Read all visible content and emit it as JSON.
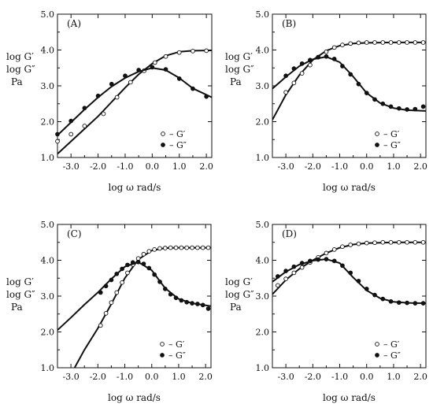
{
  "chart_data": [
    {
      "type": "scatter",
      "panel_label": "(A)",
      "xlabel": "log ω  rad/s",
      "ylabel_lines": [
        "log G′",
        "log G″",
        "Pa"
      ],
      "xlim": [
        -3.5,
        2.2
      ],
      "ylim": [
        1.0,
        5.0
      ],
      "x_ticks": [
        -3.0,
        -2.0,
        -1.0,
        0.0,
        1.0,
        2.0
      ],
      "y_ticks": [
        1.0,
        2.0,
        3.0,
        4.0,
        5.0
      ],
      "legend_position": "bottom-right",
      "series": [
        {
          "name": "G′",
          "marker": "open-circle",
          "points": [
            [
              -3.5,
              1.45
            ],
            [
              -3.0,
              1.65
            ],
            [
              -2.5,
              1.88
            ],
            [
              -1.8,
              2.22
            ],
            [
              -1.3,
              2.68
            ],
            [
              -0.8,
              3.1
            ],
            [
              -0.3,
              3.42
            ],
            [
              0.1,
              3.65
            ],
            [
              0.5,
              3.82
            ],
            [
              1.0,
              3.93
            ],
            [
              1.5,
              3.97
            ],
            [
              2.0,
              3.98
            ]
          ],
          "fit": [
            [
              -3.5,
              1.1
            ],
            [
              -3.0,
              1.45
            ],
            [
              -2.5,
              1.8
            ],
            [
              -2.0,
              2.15
            ],
            [
              -1.5,
              2.55
            ],
            [
              -1.0,
              2.95
            ],
            [
              -0.5,
              3.32
            ],
            [
              0.0,
              3.62
            ],
            [
              0.5,
              3.84
            ],
            [
              1.0,
              3.95
            ],
            [
              1.5,
              3.98
            ],
            [
              2.2,
              3.99
            ]
          ]
        },
        {
          "name": "G″",
          "marker": "filled-circle",
          "points": [
            [
              -3.5,
              1.65
            ],
            [
              -3.0,
              2.02
            ],
            [
              -2.5,
              2.38
            ],
            [
              -2.0,
              2.72
            ],
            [
              -1.5,
              3.05
            ],
            [
              -1.0,
              3.28
            ],
            [
              -0.5,
              3.44
            ],
            [
              0.0,
              3.52
            ],
            [
              0.5,
              3.46
            ],
            [
              1.0,
              3.2
            ],
            [
              1.5,
              2.92
            ],
            [
              2.0,
              2.7
            ]
          ],
          "fit": [
            [
              -3.5,
              1.62
            ],
            [
              -3.0,
              1.98
            ],
            [
              -2.5,
              2.34
            ],
            [
              -2.0,
              2.68
            ],
            [
              -1.5,
              2.98
            ],
            [
              -1.0,
              3.22
            ],
            [
              -0.5,
              3.4
            ],
            [
              0.0,
              3.5
            ],
            [
              0.5,
              3.44
            ],
            [
              1.0,
              3.22
            ],
            [
              1.5,
              2.93
            ],
            [
              2.2,
              2.68
            ]
          ]
        }
      ]
    },
    {
      "type": "scatter",
      "panel_label": "(B)",
      "xlabel": "log ω  rad/s",
      "ylabel_lines": [
        "log G′",
        "log G″",
        "Pa"
      ],
      "xlim": [
        -3.5,
        2.2
      ],
      "ylim": [
        1.0,
        5.0
      ],
      "x_ticks": [
        -3.0,
        -2.0,
        -1.0,
        0.0,
        1.0,
        2.0
      ],
      "y_ticks": [
        1.0,
        2.0,
        3.0,
        4.0,
        5.0
      ],
      "legend_position": "bottom-right",
      "series": [
        {
          "name": "G′",
          "marker": "open-circle",
          "points": [
            [
              -3.0,
              2.82
            ],
            [
              -2.7,
              3.08
            ],
            [
              -2.4,
              3.35
            ],
            [
              -2.1,
              3.58
            ],
            [
              -1.8,
              3.8
            ],
            [
              -1.5,
              3.95
            ],
            [
              -1.2,
              4.07
            ],
            [
              -0.9,
              4.14
            ],
            [
              -0.6,
              4.18
            ],
            [
              -0.3,
              4.2
            ],
            [
              0.0,
              4.21
            ],
            [
              0.3,
              4.21
            ],
            [
              0.6,
              4.21
            ],
            [
              0.9,
              4.21
            ],
            [
              1.2,
              4.21
            ],
            [
              1.5,
              4.21
            ],
            [
              1.8,
              4.21
            ],
            [
              2.1,
              4.21
            ]
          ],
          "fit": [
            [
              -3.5,
              2.05
            ],
            [
              -3.0,
              2.75
            ],
            [
              -2.5,
              3.3
            ],
            [
              -2.0,
              3.72
            ],
            [
              -1.5,
              3.98
            ],
            [
              -1.0,
              4.12
            ],
            [
              -0.5,
              4.18
            ],
            [
              0.0,
              4.2
            ],
            [
              1.0,
              4.21
            ],
            [
              2.2,
              4.21
            ]
          ]
        },
        {
          "name": "G″",
          "marker": "filled-circle",
          "points": [
            [
              -3.0,
              3.28
            ],
            [
              -2.7,
              3.48
            ],
            [
              -2.4,
              3.62
            ],
            [
              -2.1,
              3.72
            ],
            [
              -1.8,
              3.8
            ],
            [
              -1.5,
              3.82
            ],
            [
              -1.2,
              3.75
            ],
            [
              -0.9,
              3.55
            ],
            [
              -0.6,
              3.32
            ],
            [
              -0.3,
              3.05
            ],
            [
              0.0,
              2.8
            ],
            [
              0.3,
              2.62
            ],
            [
              0.6,
              2.5
            ],
            [
              0.9,
              2.42
            ],
            [
              1.2,
              2.37
            ],
            [
              1.5,
              2.34
            ],
            [
              1.8,
              2.35
            ],
            [
              2.1,
              2.42
            ]
          ],
          "fit": [
            [
              -3.5,
              2.92
            ],
            [
              -3.0,
              3.25
            ],
            [
              -2.5,
              3.55
            ],
            [
              -2.0,
              3.74
            ],
            [
              -1.5,
              3.81
            ],
            [
              -1.0,
              3.66
            ],
            [
              -0.5,
              3.26
            ],
            [
              0.0,
              2.8
            ],
            [
              0.5,
              2.52
            ],
            [
              1.0,
              2.38
            ],
            [
              1.5,
              2.32
            ],
            [
              2.2,
              2.3
            ]
          ]
        }
      ]
    },
    {
      "type": "scatter",
      "panel_label": "(C)",
      "xlabel": "log ω  rad/s",
      "ylabel_lines": [
        "log G′",
        "log G″",
        "Pa"
      ],
      "xlim": [
        -3.5,
        2.2
      ],
      "ylim": [
        1.0,
        5.0
      ],
      "x_ticks": [
        -3.0,
        -2.0,
        -1.0,
        0.0,
        1.0,
        2.0
      ],
      "y_ticks": [
        1.0,
        2.0,
        3.0,
        4.0,
        5.0
      ],
      "legend_position": "bottom-right",
      "series": [
        {
          "name": "G′",
          "marker": "open-circle",
          "points": [
            [
              -1.9,
              2.18
            ],
            [
              -1.7,
              2.52
            ],
            [
              -1.5,
              2.82
            ],
            [
              -1.3,
              3.1
            ],
            [
              -1.1,
              3.38
            ],
            [
              -0.9,
              3.65
            ],
            [
              -0.7,
              3.88
            ],
            [
              -0.5,
              4.05
            ],
            [
              -0.3,
              4.17
            ],
            [
              -0.1,
              4.25
            ],
            [
              0.1,
              4.3
            ],
            [
              0.3,
              4.33
            ],
            [
              0.5,
              4.34
            ],
            [
              0.7,
              4.35
            ],
            [
              0.9,
              4.35
            ],
            [
              1.1,
              4.35
            ],
            [
              1.3,
              4.35
            ],
            [
              1.5,
              4.35
            ],
            [
              1.7,
              4.35
            ],
            [
              1.9,
              4.35
            ],
            [
              2.1,
              4.35
            ]
          ],
          "fit": [
            [
              -2.9,
              0.95
            ],
            [
              -2.5,
              1.5
            ],
            [
              -2.0,
              2.1
            ],
            [
              -1.5,
              2.78
            ],
            [
              -1.0,
              3.5
            ],
            [
              -0.5,
              4.02
            ],
            [
              0.0,
              4.27
            ],
            [
              0.5,
              4.34
            ],
            [
              1.0,
              4.35
            ],
            [
              2.2,
              4.35
            ]
          ]
        },
        {
          "name": "G″",
          "marker": "filled-circle",
          "points": [
            [
              -1.9,
              3.1
            ],
            [
              -1.7,
              3.28
            ],
            [
              -1.5,
              3.45
            ],
            [
              -1.3,
              3.62
            ],
            [
              -1.1,
              3.76
            ],
            [
              -0.9,
              3.87
            ],
            [
              -0.7,
              3.94
            ],
            [
              -0.5,
              3.95
            ],
            [
              -0.3,
              3.9
            ],
            [
              -0.1,
              3.78
            ],
            [
              0.1,
              3.6
            ],
            [
              0.3,
              3.4
            ],
            [
              0.5,
              3.2
            ],
            [
              0.7,
              3.05
            ],
            [
              0.9,
              2.95
            ],
            [
              1.1,
              2.88
            ],
            [
              1.3,
              2.83
            ],
            [
              1.5,
              2.8
            ],
            [
              1.7,
              2.78
            ],
            [
              1.9,
              2.75
            ],
            [
              2.1,
              2.65
            ]
          ],
          "fit": [
            [
              -3.5,
              2.05
            ],
            [
              -3.0,
              2.4
            ],
            [
              -2.5,
              2.76
            ],
            [
              -2.0,
              3.1
            ],
            [
              -1.5,
              3.48
            ],
            [
              -1.0,
              3.82
            ],
            [
              -0.5,
              3.95
            ],
            [
              0.0,
              3.72
            ],
            [
              0.5,
              3.22
            ],
            [
              1.0,
              2.92
            ],
            [
              1.5,
              2.8
            ],
            [
              2.2,
              2.72
            ]
          ]
        }
      ]
    },
    {
      "type": "scatter",
      "panel_label": "(D)",
      "xlabel": "log ω  rad/s",
      "ylabel_lines": [
        "log G′",
        "log G″",
        "Pa"
      ],
      "xlim": [
        -3.5,
        2.2
      ],
      "ylim": [
        1.0,
        5.0
      ],
      "x_ticks": [
        -3.0,
        -2.0,
        -1.0,
        0.0,
        1.0,
        2.0
      ],
      "y_ticks": [
        1.0,
        2.0,
        3.0,
        4.0,
        5.0
      ],
      "legend_position": "bottom-right",
      "series": [
        {
          "name": "G′",
          "marker": "open-circle",
          "points": [
            [
              -3.3,
              3.3
            ],
            [
              -3.0,
              3.48
            ],
            [
              -2.7,
              3.65
            ],
            [
              -2.4,
              3.8
            ],
            [
              -2.1,
              3.94
            ],
            [
              -1.8,
              4.08
            ],
            [
              -1.5,
              4.2
            ],
            [
              -1.2,
              4.3
            ],
            [
              -0.9,
              4.38
            ],
            [
              -0.6,
              4.43
            ],
            [
              -0.3,
              4.46
            ],
            [
              0.0,
              4.48
            ],
            [
              0.3,
              4.49
            ],
            [
              0.6,
              4.5
            ],
            [
              0.9,
              4.5
            ],
            [
              1.2,
              4.5
            ],
            [
              1.5,
              4.5
            ],
            [
              1.8,
              4.5
            ],
            [
              2.1,
              4.5
            ]
          ],
          "fit": [
            [
              -3.5,
              3.05
            ],
            [
              -3.0,
              3.45
            ],
            [
              -2.5,
              3.76
            ],
            [
              -2.0,
              4.0
            ],
            [
              -1.5,
              4.2
            ],
            [
              -1.0,
              4.35
            ],
            [
              -0.5,
              4.44
            ],
            [
              0.0,
              4.48
            ],
            [
              1.0,
              4.5
            ],
            [
              2.2,
              4.5
            ]
          ]
        },
        {
          "name": "G″",
          "marker": "filled-circle",
          "points": [
            [
              -3.3,
              3.55
            ],
            [
              -3.0,
              3.7
            ],
            [
              -2.7,
              3.82
            ],
            [
              -2.4,
              3.92
            ],
            [
              -2.1,
              3.98
            ],
            [
              -1.8,
              4.02
            ],
            [
              -1.5,
              4.03
            ],
            [
              -1.2,
              3.98
            ],
            [
              -0.9,
              3.85
            ],
            [
              -0.6,
              3.65
            ],
            [
              -0.3,
              3.42
            ],
            [
              0.0,
              3.2
            ],
            [
              0.3,
              3.03
            ],
            [
              0.6,
              2.92
            ],
            [
              0.9,
              2.85
            ],
            [
              1.2,
              2.82
            ],
            [
              1.5,
              2.81
            ],
            [
              1.8,
              2.8
            ],
            [
              2.1,
              2.8
            ]
          ],
          "fit": [
            [
              -3.5,
              3.4
            ],
            [
              -3.0,
              3.68
            ],
            [
              -2.5,
              3.88
            ],
            [
              -2.0,
              3.99
            ],
            [
              -1.5,
              4.03
            ],
            [
              -1.0,
              3.92
            ],
            [
              -0.5,
              3.52
            ],
            [
              0.0,
              3.16
            ],
            [
              0.5,
              2.94
            ],
            [
              1.0,
              2.84
            ],
            [
              1.5,
              2.81
            ],
            [
              2.2,
              2.8
            ]
          ]
        }
      ]
    }
  ]
}
